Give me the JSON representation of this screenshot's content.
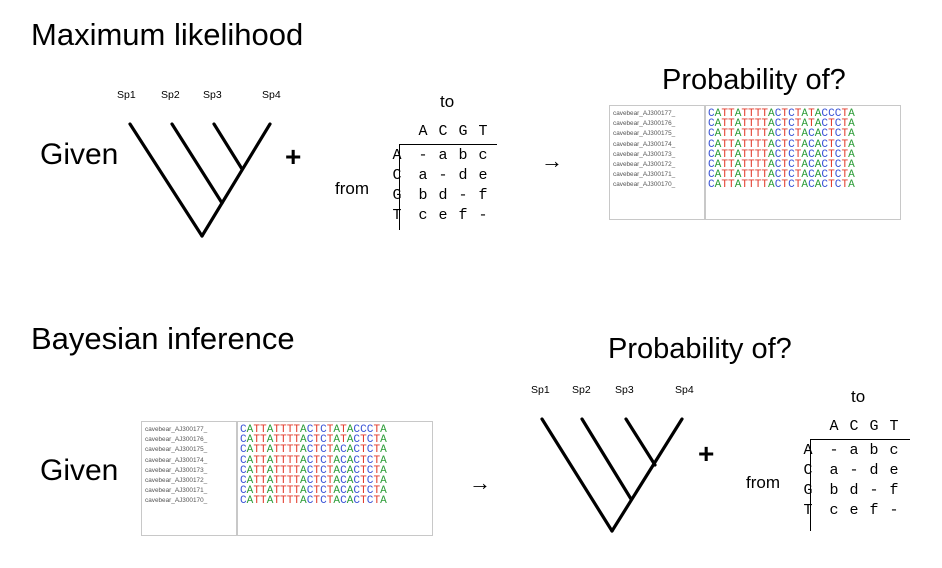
{
  "ml": {
    "title": "Maximum likelihood",
    "given": "Given",
    "plus": "+",
    "arrow": "→",
    "prob": "Probability of?"
  },
  "bi": {
    "title": "Bayesian inference",
    "given": "Given",
    "plus": "+",
    "arrow": "→",
    "prob": "Probability of?"
  },
  "tree": {
    "species": [
      "Sp1",
      "Sp2",
      "Sp3",
      "Sp4"
    ]
  },
  "matrix": {
    "to_label": "to",
    "from_label": "from",
    "headers": [
      "A",
      "C",
      "G",
      "T"
    ],
    "rows": [
      [
        "-",
        "a",
        "b",
        "c"
      ],
      [
        "a",
        "-",
        "d",
        "e"
      ],
      [
        "b",
        "d",
        "-",
        "f"
      ],
      [
        "c",
        "e",
        "f",
        "-"
      ]
    ]
  },
  "alignment": {
    "names": [
      "cavebear_AJ300177_",
      "cavebear_AJ300176_",
      "cavebear_AJ300175_",
      "cavebear_AJ300174_",
      "cavebear_AJ300173_",
      "cavebear_AJ300172_",
      "cavebear_AJ300171_",
      "cavebear_AJ300170_"
    ],
    "sequences": [
      "CATTATTTTACTCTATACCCTA",
      "CATTATTTTACTCTATACTCTA",
      "CATTATTTTACTCTACACTCTA",
      "CATTATTTTACTCTACACTCTA",
      "CATTATTTTACTCTACACTCTA",
      "CATTATTTTACTCTACACTCTA",
      "CATTATTTTACTCTACACTCTA",
      "CATTATTTTACTCTACACTCTA"
    ]
  },
  "colors": {
    "A": "#2f9e3a",
    "C": "#3a54d6",
    "G": "#6b5b2a",
    "T": "#e23a2a"
  }
}
